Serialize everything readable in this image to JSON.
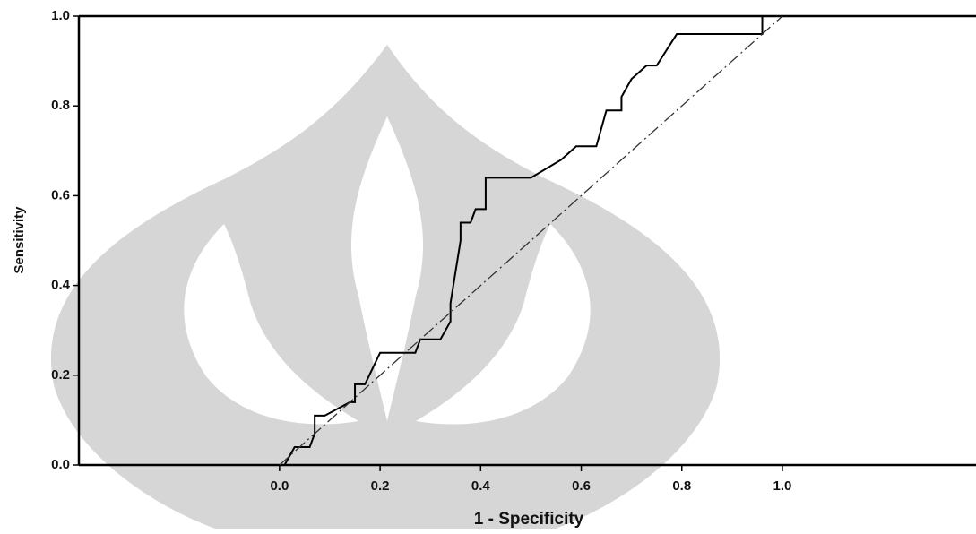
{
  "chart_data": {
    "type": "line",
    "xlabel": "1 - Specificity",
    "ylabel": "Sensitivity",
    "xlim": [
      -0.399,
      1.385
    ],
    "ylim": [
      0,
      1
    ],
    "xticks": [
      {
        "value": 0,
        "label": "0.0"
      },
      0.2,
      0.4,
      0.6,
      0.8,
      {
        "value": 1,
        "label": "1.0"
      }
    ],
    "yticks": [
      {
        "value": 0,
        "label": "0.0"
      },
      0.2,
      0.4,
      0.6,
      0.8,
      {
        "value": 1,
        "label": "1.0"
      }
    ],
    "series": [
      {
        "color": "#000000",
        "style": "solid",
        "x": [
          0.01,
          0.03,
          0.06,
          0.07,
          0.07,
          0.09,
          0.14,
          0.15,
          0.15,
          0.17,
          0.2,
          0.27,
          0.28,
          0.32,
          0.34,
          0.34,
          0.35,
          0.36,
          0.36,
          0.38,
          0.39,
          0.41,
          0.41,
          0.5,
          0.56,
          0.59,
          0.63,
          0.64,
          0.65,
          0.68,
          0.68,
          0.7,
          0.73,
          0.75,
          0.79,
          0.96,
          0.96,
          1.0
        ],
        "values": [
          0.0,
          0.04,
          0.04,
          0.07,
          0.11,
          0.11,
          0.14,
          0.14,
          0.18,
          0.18,
          0.25,
          0.25,
          0.28,
          0.28,
          0.32,
          0.36,
          0.43,
          0.5,
          0.54,
          0.54,
          0.57,
          0.57,
          0.64,
          0.64,
          0.68,
          0.71,
          0.71,
          0.75,
          0.79,
          0.79,
          0.82,
          0.86,
          0.89,
          0.89,
          0.96,
          0.96,
          1.0,
          1.0
        ]
      },
      {
        "color": "#333333",
        "style": "dashed",
        "x": [
          0,
          1
        ],
        "values": [
          0,
          1
        ]
      }
    ]
  }
}
